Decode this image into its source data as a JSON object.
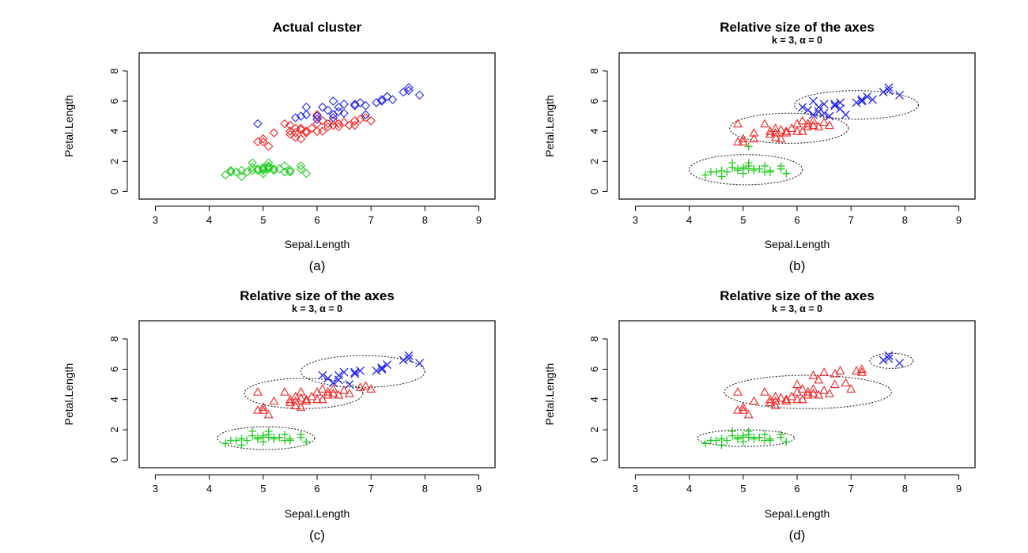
{
  "figure_width": 1300,
  "figure_height": 700,
  "colors": {
    "cluster1": "#22cc22",
    "cluster2": "#ee2222",
    "cluster3": "#2222ee"
  },
  "chart_data": [
    {
      "type": "scatter",
      "title": "Actual cluster",
      "subtitle": "",
      "xlabel": "Sepal.Length",
      "ylabel": "Petal.Length",
      "caption": "(a)",
      "xlim": [
        2.7,
        9.3
      ],
      "ylim": [
        -0.5,
        9.2
      ],
      "xticks": [
        3,
        4,
        5,
        6,
        7,
        8,
        9
      ],
      "yticks": [
        0,
        2,
        4,
        6,
        8
      ],
      "grid": false,
      "marker": "diamond",
      "series": [
        {
          "color": "#22cc22",
          "x": [
            4.3,
            4.4,
            4.5,
            4.6,
            4.6,
            4.7,
            4.8,
            4.8,
            4.9,
            4.9,
            5.0,
            5.0,
            5.0,
            5.1,
            5.1,
            5.1,
            5.2,
            5.2,
            5.3,
            5.4,
            5.4,
            5.5,
            5.5,
            5.7,
            5.7,
            5.8,
            4.4,
            4.8,
            5.0,
            5.1
          ],
          "y": [
            1.1,
            1.3,
            1.3,
            1.4,
            1.0,
            1.3,
            1.6,
            1.9,
            1.5,
            1.4,
            1.6,
            1.2,
            1.5,
            1.5,
            1.9,
            1.7,
            1.4,
            1.5,
            1.5,
            1.7,
            1.3,
            1.3,
            1.4,
            1.7,
            1.5,
            1.2,
            1.4,
            1.4,
            1.4,
            1.6
          ]
        },
        {
          "color": "#ee2222",
          "x": [
            4.9,
            5.0,
            5.0,
            5.1,
            5.2,
            5.4,
            5.5,
            5.5,
            5.6,
            5.6,
            5.6,
            5.7,
            5.7,
            5.8,
            5.8,
            5.9,
            6.0,
            6.0,
            6.1,
            6.1,
            6.2,
            6.2,
            6.3,
            6.3,
            6.4,
            6.5,
            6.6,
            6.7,
            6.7,
            6.8,
            6.9,
            7.0,
            5.5,
            5.7,
            6.0,
            6.4
          ],
          "y": [
            3.3,
            3.5,
            3.3,
            3.0,
            3.9,
            4.5,
            4.0,
            3.8,
            3.6,
            3.9,
            4.2,
            4.1,
            3.5,
            4.0,
            3.9,
            4.2,
            4.0,
            4.5,
            4.0,
            4.7,
            4.3,
            4.5,
            4.4,
            4.7,
            4.3,
            4.6,
            4.4,
            4.4,
            4.7,
            4.8,
            4.9,
            4.7,
            4.4,
            4.2,
            5.1,
            4.5
          ]
        },
        {
          "color": "#2222ee",
          "x": [
            4.9,
            5.6,
            5.7,
            5.8,
            5.8,
            6.0,
            6.1,
            6.2,
            6.3,
            6.3,
            6.4,
            6.4,
            6.5,
            6.5,
            6.7,
            6.7,
            6.8,
            6.9,
            7.1,
            7.2,
            7.2,
            7.3,
            7.4,
            7.6,
            7.7,
            7.7,
            7.9,
            6.0,
            6.3,
            6.9
          ],
          "y": [
            4.5,
            4.9,
            5.0,
            5.1,
            5.6,
            5.0,
            5.6,
            5.4,
            5.1,
            6.0,
            5.3,
            5.6,
            5.8,
            5.2,
            5.7,
            5.8,
            5.9,
            5.1,
            5.9,
            6.0,
            6.1,
            6.3,
            6.1,
            6.6,
            6.7,
            6.9,
            6.4,
            4.8,
            4.9,
            5.7
          ]
        }
      ]
    },
    {
      "type": "scatter",
      "title": "Relative size of the axes",
      "subtitle": "k = 3,  α = 0",
      "xlabel": "Sepal.Length",
      "ylabel": "Petal.Length",
      "caption": "(b)",
      "xlim": [
        2.7,
        9.3
      ],
      "ylim": [
        -0.5,
        9.2
      ],
      "xticks": [
        3,
        4,
        5,
        6,
        7,
        8,
        9
      ],
      "yticks": [
        0,
        2,
        4,
        6,
        8
      ],
      "grid": false,
      "series": [
        {
          "color": "#22cc22",
          "marker": "plus",
          "x": [
            4.3,
            4.4,
            4.5,
            4.6,
            4.6,
            4.7,
            4.8,
            4.8,
            4.9,
            4.9,
            5.0,
            5.0,
            5.0,
            5.1,
            5.1,
            5.1,
            5.2,
            5.2,
            5.3,
            5.4,
            5.4,
            5.5,
            5.5,
            5.7,
            5.7,
            5.8,
            5.1
          ],
          "y": [
            1.1,
            1.3,
            1.3,
            1.4,
            1.0,
            1.3,
            1.6,
            1.9,
            1.5,
            1.4,
            1.6,
            1.2,
            1.5,
            1.5,
            1.9,
            1.7,
            1.4,
            1.5,
            1.5,
            1.7,
            1.3,
            1.3,
            1.4,
            1.7,
            1.5,
            1.2,
            3.0
          ]
        },
        {
          "color": "#ee2222",
          "marker": "triangle",
          "x": [
            4.9,
            5.0,
            5.0,
            5.2,
            5.4,
            5.5,
            5.5,
            5.6,
            5.6,
            5.6,
            5.7,
            5.7,
            5.8,
            5.8,
            5.9,
            6.0,
            6.0,
            6.1,
            6.1,
            6.2,
            6.2,
            6.3,
            6.3,
            6.4,
            6.5,
            6.6,
            4.9,
            5.2
          ],
          "y": [
            3.3,
            3.5,
            3.3,
            3.9,
            4.5,
            4.0,
            3.8,
            3.6,
            3.9,
            4.2,
            4.1,
            3.5,
            4.0,
            3.9,
            4.2,
            4.0,
            4.5,
            4.0,
            4.7,
            4.3,
            4.5,
            4.4,
            4.7,
            4.3,
            4.6,
            4.4,
            4.5,
            3.5
          ]
        },
        {
          "color": "#2222ee",
          "marker": "cross",
          "x": [
            6.1,
            6.2,
            6.3,
            6.3,
            6.4,
            6.4,
            6.5,
            6.5,
            6.7,
            6.7,
            6.8,
            6.9,
            7.1,
            7.2,
            7.2,
            7.3,
            7.4,
            7.6,
            7.7,
            7.7,
            7.9,
            6.6,
            6.8
          ],
          "y": [
            5.6,
            5.4,
            5.1,
            6.0,
            5.3,
            5.6,
            5.8,
            5.2,
            5.7,
            5.8,
            5.9,
            5.1,
            5.9,
            6.0,
            6.1,
            6.3,
            6.1,
            6.6,
            6.7,
            6.9,
            6.4,
            5.0,
            5.5
          ]
        }
      ],
      "ellipses": [
        {
          "cx": 5.05,
          "cy": 1.45,
          "rx": 1.05,
          "ry": 1.0
        },
        {
          "cx": 5.85,
          "cy": 4.2,
          "rx": 1.1,
          "ry": 1.0
        },
        {
          "cx": 7.1,
          "cy": 5.75,
          "rx": 1.15,
          "ry": 0.95
        }
      ]
    },
    {
      "type": "scatter",
      "title": "Relative size of the axes",
      "subtitle": "k = 3,  α = 0",
      "xlabel": "Sepal.Length",
      "ylabel": "Petal.Length",
      "caption": "(c)",
      "xlim": [
        2.7,
        9.3
      ],
      "ylim": [
        -0.5,
        9.2
      ],
      "xticks": [
        3,
        4,
        5,
        6,
        7,
        8,
        9
      ],
      "yticks": [
        0,
        2,
        4,
        6,
        8
      ],
      "grid": false,
      "series": [
        {
          "color": "#22cc22",
          "marker": "plus",
          "x": [
            4.3,
            4.4,
            4.5,
            4.6,
            4.6,
            4.7,
            4.8,
            4.8,
            4.9,
            4.9,
            5.0,
            5.0,
            5.0,
            5.1,
            5.1,
            5.1,
            5.2,
            5.2,
            5.3,
            5.4,
            5.4,
            5.5,
            5.5,
            5.7,
            5.7,
            5.8
          ],
          "y": [
            1.1,
            1.3,
            1.3,
            1.4,
            1.0,
            1.3,
            1.6,
            1.9,
            1.5,
            1.4,
            1.6,
            1.2,
            1.5,
            1.5,
            1.9,
            1.7,
            1.4,
            1.5,
            1.5,
            1.7,
            1.3,
            1.3,
            1.4,
            1.7,
            1.5,
            1.2
          ]
        },
        {
          "color": "#ee2222",
          "marker": "triangle",
          "x": [
            4.9,
            5.0,
            5.0,
            5.1,
            5.2,
            5.4,
            5.5,
            5.5,
            5.6,
            5.6,
            5.6,
            5.7,
            5.7,
            5.8,
            5.8,
            5.9,
            6.0,
            6.0,
            6.1,
            6.1,
            6.2,
            6.2,
            6.3,
            6.3,
            6.4,
            6.5,
            6.6,
            6.8,
            6.9,
            7.0,
            4.9,
            5.7
          ],
          "y": [
            3.3,
            3.5,
            3.3,
            3.0,
            3.9,
            4.5,
            4.0,
            3.8,
            3.6,
            3.9,
            4.2,
            4.1,
            3.5,
            4.0,
            3.9,
            4.2,
            4.0,
            4.5,
            4.0,
            4.7,
            4.3,
            4.5,
            4.4,
            4.7,
            4.3,
            4.6,
            4.4,
            4.8,
            4.9,
            4.7,
            4.5,
            4.5
          ]
        },
        {
          "color": "#2222ee",
          "marker": "cross",
          "x": [
            6.1,
            6.2,
            6.3,
            6.4,
            6.5,
            6.7,
            6.7,
            6.8,
            7.1,
            7.2,
            7.2,
            7.3,
            7.6,
            7.7,
            7.7,
            7.9,
            6.4,
            6.6
          ],
          "y": [
            5.6,
            5.4,
            5.1,
            5.6,
            5.8,
            5.7,
            5.8,
            5.9,
            5.9,
            6.0,
            6.1,
            6.3,
            6.6,
            6.7,
            6.9,
            6.4,
            5.3,
            5.0
          ]
        }
      ],
      "ellipses": [
        {
          "cx": 5.05,
          "cy": 1.45,
          "rx": 0.9,
          "ry": 0.75
        },
        {
          "cx": 5.75,
          "cy": 4.4,
          "rx": 1.1,
          "ry": 1.0
        },
        {
          "cx": 6.85,
          "cy": 5.85,
          "rx": 1.15,
          "ry": 1.05
        }
      ]
    },
    {
      "type": "scatter",
      "title": "Relative size of the axes",
      "subtitle": "k = 3,  α = 0",
      "xlabel": "Sepal.Length",
      "ylabel": "Petal.Length",
      "caption": "(d)",
      "xlim": [
        2.7,
        9.3
      ],
      "ylim": [
        -0.5,
        9.2
      ],
      "xticks": [
        3,
        4,
        5,
        6,
        7,
        8,
        9
      ],
      "yticks": [
        0,
        2,
        4,
        6,
        8
      ],
      "grid": false,
      "series": [
        {
          "color": "#22cc22",
          "marker": "plus",
          "x": [
            4.3,
            4.4,
            4.5,
            4.6,
            4.6,
            4.7,
            4.8,
            4.8,
            4.9,
            4.9,
            5.0,
            5.0,
            5.0,
            5.1,
            5.1,
            5.1,
            5.2,
            5.2,
            5.3,
            5.4,
            5.4,
            5.5,
            5.5,
            5.7,
            5.7,
            5.8
          ],
          "y": [
            1.1,
            1.3,
            1.3,
            1.4,
            1.0,
            1.3,
            1.6,
            1.9,
            1.5,
            1.4,
            1.6,
            1.2,
            1.5,
            1.5,
            1.9,
            1.7,
            1.4,
            1.5,
            1.5,
            1.7,
            1.3,
            1.3,
            1.4,
            1.7,
            1.5,
            1.2
          ]
        },
        {
          "color": "#ee2222",
          "marker": "triangle",
          "x": [
            4.9,
            5.0,
            5.0,
            5.1,
            5.2,
            5.4,
            5.5,
            5.5,
            5.6,
            5.6,
            5.6,
            5.7,
            5.8,
            5.8,
            5.9,
            6.0,
            6.0,
            6.1,
            6.1,
            6.2,
            6.2,
            6.3,
            6.3,
            6.4,
            6.4,
            6.5,
            6.5,
            6.7,
            6.7,
            6.8,
            6.9,
            7.0,
            7.1,
            7.2,
            7.2,
            4.9,
            6.0,
            6.3,
            6.6
          ],
          "y": [
            3.3,
            3.5,
            3.3,
            3.0,
            3.9,
            4.5,
            4.0,
            3.8,
            3.6,
            3.9,
            4.2,
            4.1,
            4.0,
            3.9,
            4.2,
            4.0,
            4.5,
            4.0,
            4.7,
            4.3,
            4.5,
            4.4,
            4.7,
            4.3,
            5.3,
            4.6,
            5.8,
            5.7,
            5.0,
            5.9,
            5.1,
            4.7,
            5.9,
            6.0,
            5.8,
            4.5,
            5.0,
            5.6,
            4.4
          ]
        },
        {
          "color": "#2222ee",
          "marker": "cross",
          "x": [
            7.6,
            7.7,
            7.7,
            7.9
          ],
          "y": [
            6.6,
            6.7,
            6.9,
            6.4
          ]
        }
      ],
      "ellipses": [
        {
          "cx": 5.05,
          "cy": 1.45,
          "rx": 0.9,
          "ry": 0.55
        },
        {
          "cx": 6.2,
          "cy": 4.5,
          "rx": 1.55,
          "ry": 1.1
        },
        {
          "cx": 7.75,
          "cy": 6.55,
          "rx": 0.4,
          "ry": 0.5
        }
      ]
    }
  ]
}
